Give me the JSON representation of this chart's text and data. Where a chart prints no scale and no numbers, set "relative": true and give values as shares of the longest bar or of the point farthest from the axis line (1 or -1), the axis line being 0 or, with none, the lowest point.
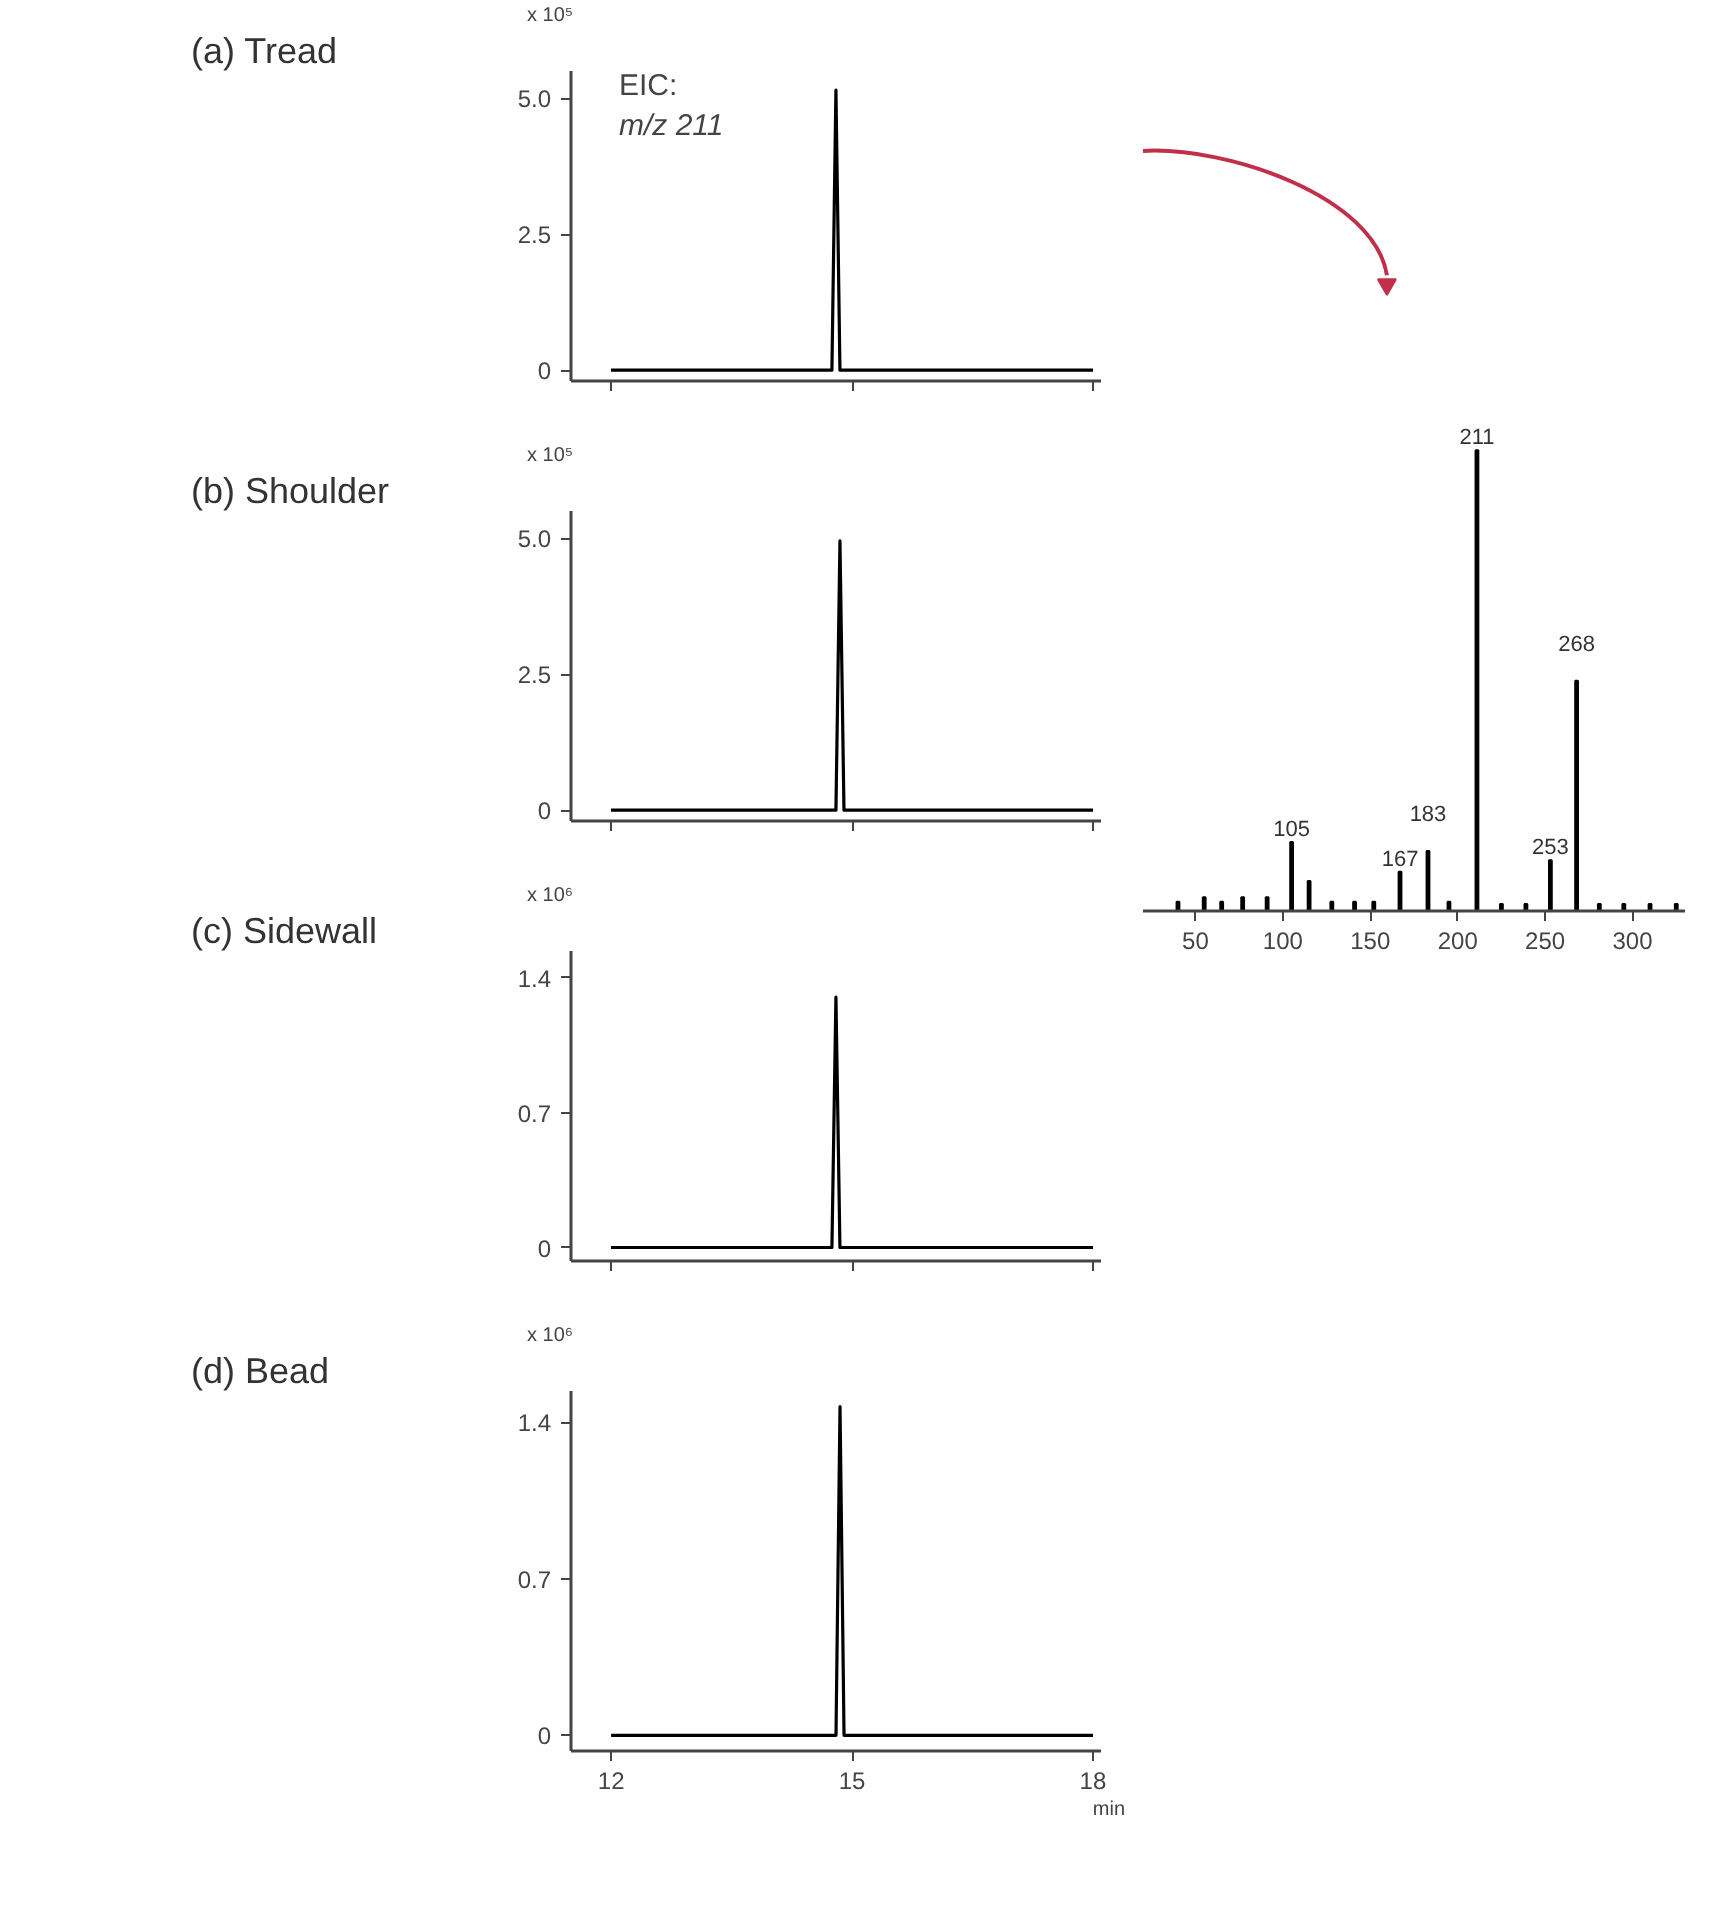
{
  "chart_data": [
    {
      "type": "line",
      "title": "(a) Tread",
      "ylabel": "x 10⁵",
      "annotations": [
        "EIC:",
        "m/z 211"
      ],
      "categories": [
        null,
        null,
        null,
        null,
        null,
        null,
        null,
        null,
        null,
        null,
        null,
        null,
        null,
        null,
        null,
        null,
        null,
        null,
        null,
        null,
        null,
        null,
        null,
        null,
        null,
        null,
        null,
        null,
        null,
        null,
        null,
        null,
        null,
        null,
        null,
        null,
        null,
        null,
        null,
        null,
        null,
        null,
        null,
        null,
        null,
        null,
        null,
        null,
        null,
        null,
        null,
        null,
        null,
        null,
        null,
        null,
        null,
        null,
        null,
        null,
        null,
        null,
        null,
        null,
        null,
        null,
        null,
        null,
        null,
        null,
        null,
        null,
        null,
        null,
        null,
        null,
        null,
        null,
        null,
        null,
        null,
        null,
        null,
        null,
        null,
        null,
        null,
        null,
        null,
        null,
        null,
        null,
        null,
        null,
        null,
        null,
        null,
        null,
        null,
        null,
        null,
        null,
        null,
        null,
        null,
        null,
        null,
        null,
        null,
        null,
        null,
        null,
        null,
        null,
        null,
        null,
        null,
        null,
        null,
        null,
        null
      ],
      "series": [
        {
          "color": "#000000",
          "values": [
            0,
            0,
            0,
            0,
            0,
            0,
            0,
            0,
            0,
            0,
            0,
            0,
            0,
            0,
            0,
            0,
            0,
            0,
            0,
            0,
            0,
            0,
            0,
            0,
            0,
            0,
            0,
            0,
            0,
            0,
            0,
            0,
            0,
            0,
            0,
            0,
            0,
            0,
            0,
            0,
            0,
            0,
            0,
            0,
            0,
            0,
            0,
            0,
            0,
            0,
            0,
            0,
            0,
            0,
            0,
            0,
            5.15,
            0,
            0,
            0,
            0,
            0,
            0,
            0,
            0,
            0,
            0,
            0,
            0,
            0,
            0,
            0,
            0,
            0,
            0,
            0,
            0,
            0,
            0,
            0,
            0,
            0,
            0,
            0,
            0,
            0,
            0,
            0,
            0,
            0,
            0,
            0,
            0,
            0,
            0,
            0,
            0,
            0,
            0,
            0,
            0,
            0,
            0,
            0,
            0,
            0,
            0,
            0,
            0,
            0,
            0,
            0,
            0,
            0,
            0,
            0,
            0,
            0,
            0,
            0,
            0
          ]
        }
      ],
      "ylim": [
        -0.2,
        5.5
      ],
      "yticks": [
        0,
        2.5,
        {
          "value": 5,
          "label": "5.0"
        }
      ]
    },
    {
      "type": "line",
      "title": "(b) Shoulder",
      "ylabel": "x 10⁵",
      "categories": [
        null,
        null,
        null,
        null,
        null,
        null,
        null,
        null,
        null,
        null,
        null,
        null,
        null,
        null,
        null,
        null,
        null,
        null,
        null,
        null,
        null,
        null,
        null,
        null,
        null,
        null,
        null,
        null,
        null,
        null,
        null,
        null,
        null,
        null,
        null,
        null,
        null,
        null,
        null,
        null,
        null,
        null,
        null,
        null,
        null,
        null,
        null,
        null,
        null,
        null,
        null,
        null,
        null,
        null,
        null,
        null,
        null,
        null,
        null,
        null,
        null,
        null,
        null,
        null,
        null,
        null,
        null,
        null,
        null,
        null,
        null,
        null,
        null,
        null,
        null,
        null,
        null,
        null,
        null,
        null,
        null,
        null,
        null,
        null,
        null,
        null,
        null,
        null,
        null,
        null,
        null,
        null,
        null,
        null,
        null,
        null,
        null,
        null,
        null,
        null,
        null,
        null,
        null,
        null,
        null,
        null,
        null,
        null,
        null,
        null,
        null,
        null,
        null,
        null,
        null,
        null,
        null,
        null,
        null,
        null,
        null
      ],
      "series": [
        {
          "color": "#000000",
          "values": [
            0,
            0,
            0,
            0,
            0,
            0,
            0,
            0,
            0,
            0,
            0,
            0,
            0,
            0,
            0,
            0,
            0,
            0,
            0,
            0,
            0,
            0,
            0,
            0,
            0,
            0,
            0,
            0,
            0,
            0,
            0,
            0,
            0,
            0,
            0,
            0,
            0,
            0,
            0,
            0,
            0,
            0,
            0,
            0,
            0,
            0,
            0,
            0,
            0,
            0,
            0,
            0,
            0,
            0,
            0,
            0,
            0,
            4.95,
            0,
            0,
            0,
            0,
            0,
            0,
            0,
            0,
            0,
            0,
            0,
            0,
            0,
            0,
            0,
            0,
            0,
            0,
            0,
            0,
            0,
            0,
            0,
            0,
            0,
            0,
            0,
            0,
            0,
            0,
            0,
            0,
            0,
            0,
            0,
            0,
            0,
            0,
            0,
            0,
            0,
            0,
            0,
            0,
            0,
            0,
            0,
            0,
            0,
            0,
            0,
            0,
            0,
            0,
            0,
            0,
            0,
            0,
            0,
            0,
            0,
            0,
            0
          ]
        }
      ],
      "ylim": [
        -0.2,
        5.5
      ],
      "yticks": [
        0,
        2.5,
        {
          "value": 5,
          "label": "5.0"
        }
      ]
    },
    {
      "type": "line",
      "title": "(c) Sidewall",
      "ylabel": "x 10⁶",
      "categories": [
        null,
        null,
        null,
        null,
        null,
        null,
        null,
        null,
        null,
        null,
        null,
        null,
        null,
        null,
        null,
        null,
        null,
        null,
        null,
        null,
        null,
        null,
        null,
        null,
        null,
        null,
        null,
        null,
        null,
        null,
        null,
        null,
        null,
        null,
        null,
        null,
        null,
        null,
        null,
        null,
        null,
        null,
        null,
        null,
        null,
        null,
        null,
        null,
        null,
        null,
        null,
        null,
        null,
        null,
        null,
        null,
        null,
        null,
        null,
        null,
        null,
        null,
        null,
        null,
        null,
        null,
        null,
        null,
        null,
        null,
        null,
        null,
        null,
        null,
        null,
        null,
        null,
        null,
        null,
        null,
        null,
        null,
        null,
        null,
        null,
        null,
        null,
        null,
        null,
        null,
        null,
        null,
        null,
        null,
        null,
        null,
        null,
        null,
        null,
        null,
        null,
        null,
        null,
        null,
        null,
        null,
        null,
        null,
        null,
        null,
        null,
        null,
        null,
        null,
        null,
        null,
        null,
        null,
        null,
        null,
        null
      ],
      "series": [
        {
          "color": "#000000",
          "values": [
            0,
            0,
            0,
            0,
            0,
            0,
            0,
            0,
            0,
            0,
            0,
            0,
            0,
            0,
            0,
            0,
            0,
            0,
            0,
            0,
            0,
            0,
            0,
            0,
            0,
            0,
            0,
            0,
            0,
            0,
            0,
            0,
            0,
            0,
            0,
            0,
            0,
            0,
            0,
            0,
            0,
            0,
            0,
            0,
            0,
            0,
            0,
            0,
            0,
            0,
            0,
            0,
            0,
            0,
            0,
            0,
            1.3,
            0,
            0,
            0,
            0,
            0,
            0,
            0,
            0,
            0,
            0,
            0,
            0,
            0,
            0,
            0,
            0,
            0,
            0,
            0,
            0,
            0,
            0,
            0,
            0,
            0,
            0,
            0,
            0,
            0,
            0,
            0,
            0,
            0,
            0,
            0,
            0,
            0,
            0,
            0,
            0,
            0,
            0,
            0,
            0,
            0,
            0,
            0,
            0,
            0,
            0,
            0,
            0,
            0,
            0,
            0,
            0,
            0,
            0,
            0,
            0,
            0,
            0,
            0,
            0
          ]
        }
      ],
      "ylim": [
        -0.07,
        1.54
      ],
      "yticks": [
        0,
        0.7,
        1.4
      ]
    },
    {
      "type": "line",
      "title": "(d) Bead",
      "ylabel": "x 10⁶",
      "xlabel": "min",
      "x": [
        12,
        14.8,
        14.85,
        14.9,
        18
      ],
      "series": [
        {
          "color": "#000000",
          "values": [
            0,
            0,
            1.47,
            0,
            0
          ]
        }
      ],
      "xlim": [
        11.5,
        18.1
      ],
      "xticks": [
        12,
        15,
        18
      ],
      "ylim": [
        -0.07,
        1.54
      ],
      "yticks": [
        0,
        0.7,
        1.4
      ]
    },
    {
      "type": "bar",
      "relative": true,
      "x": [
        40,
        55,
        65,
        77,
        91,
        105,
        115,
        128,
        141,
        152,
        167,
        183,
        195,
        211,
        225,
        239,
        253,
        268,
        281,
        295,
        310,
        325
      ],
      "series": [
        {
          "color": "#000000",
          "values": [
            0.02,
            0.03,
            0.02,
            0.03,
            0.03,
            0.15,
            0.065,
            0.02,
            0.02,
            0.02,
            0.085,
            0.13,
            0.02,
            1,
            0.015,
            0.015,
            0.11,
            0.5,
            0.015,
            0.015,
            0.015,
            0.015
          ]
        }
      ],
      "xlim": [
        20,
        330
      ],
      "xticks": [
        50,
        100,
        150,
        200,
        250,
        300
      ],
      "annotations": [
        {
          "text": "105",
          "x": 105,
          "y": 0.15
        },
        {
          "text": "167",
          "x": 167,
          "y": 0.085
        },
        {
          "text": "183",
          "x": 183,
          "y": 0.13
        },
        {
          "text": "211",
          "x": 211,
          "y": 1
        },
        {
          "text": "253",
          "x": 253,
          "y": 0.11
        },
        {
          "text": "268",
          "x": 268,
          "y": 0.5
        }
      ]
    }
  ]
}
